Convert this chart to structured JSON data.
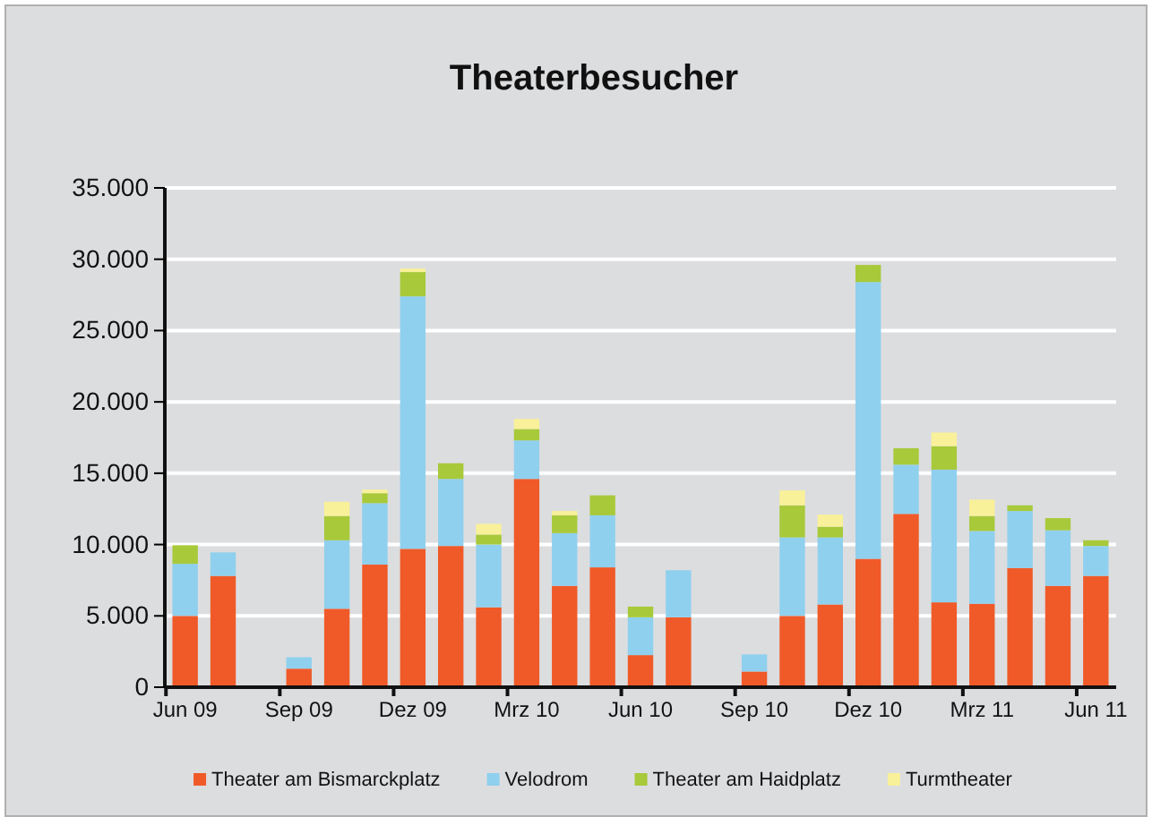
{
  "chart_data": {
    "type": "bar",
    "stacked": true,
    "title": "Theaterbesucher",
    "categories": [
      "Jun 09",
      null,
      null,
      "Sep 09",
      null,
      null,
      "Dez 09",
      null,
      null,
      "Mrz 10",
      null,
      null,
      "Jun 10",
      null,
      null,
      "Sep 10",
      null,
      null,
      "Dez 10",
      null,
      null,
      "Mrz 11",
      null,
      null,
      "Jun 11"
    ],
    "series": [
      {
        "name": "Theater am Bismarckplatz",
        "color": "#f05a28",
        "values": [
          5000,
          7800,
          null,
          1300,
          5500,
          8600,
          9700,
          9900,
          5600,
          14600,
          7100,
          8400,
          2250,
          4900,
          null,
          1100,
          5000,
          5800,
          9000,
          12150,
          5950,
          5850,
          8350,
          7100,
          7800
        ]
      },
      {
        "name": "Velodrom",
        "color": "#8fd0ee",
        "values": [
          3650,
          1650,
          null,
          800,
          4800,
          4300,
          17700,
          4700,
          4400,
          2700,
          3700,
          3650,
          2650,
          3300,
          null,
          1200,
          5500,
          4700,
          19400,
          3450,
          9300,
          5100,
          4000,
          3900,
          2100
        ]
      },
      {
        "name": "Theater am Haidplatz",
        "color": "#a8c93a",
        "values": [
          1300,
          null,
          null,
          null,
          1700,
          700,
          1700,
          1100,
          700,
          800,
          1250,
          1400,
          750,
          null,
          null,
          null,
          2250,
          750,
          1200,
          1150,
          1650,
          1050,
          400,
          850,
          400
        ]
      },
      {
        "name": "Turmtheater",
        "color": "#f9f09a",
        "values": [
          null,
          null,
          null,
          null,
          1000,
          250,
          250,
          null,
          750,
          700,
          300,
          null,
          null,
          null,
          null,
          null,
          1050,
          850,
          null,
          null,
          950,
          1150,
          null,
          null,
          null
        ]
      }
    ],
    "ylim": [
      0,
      35000
    ],
    "yticks": [
      0,
      {
        "value": 5000,
        "label": "5.000"
      },
      {
        "value": 10000,
        "label": "10.000"
      },
      {
        "value": 15000,
        "label": "15.000"
      },
      {
        "value": 20000,
        "label": "20.000"
      },
      {
        "value": 25000,
        "label": "25.000"
      },
      {
        "value": 30000,
        "label": "30.000"
      },
      {
        "value": 35000,
        "label": "35.000"
      }
    ],
    "grid": "y",
    "legend": "bottom"
  }
}
